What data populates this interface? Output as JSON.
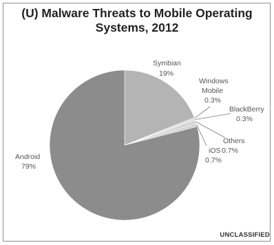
{
  "chart_data": {
    "type": "pie",
    "title_line1": "(U) Malware Threats to Mobile Operating",
    "title_line2": "Systems, 2012",
    "slices": [
      {
        "name": "Android",
        "percent_label": "79%",
        "value": 79.0
      },
      {
        "name": "Symbian",
        "percent_label": "19%",
        "value": 19.0
      },
      {
        "name": "Windows Mobile",
        "name_lines": [
          "Windows",
          "Mobile"
        ],
        "percent_label": "0.3%",
        "value": 0.3
      },
      {
        "name": "BlackBerry",
        "percent_label": "0.3%",
        "value": 0.3
      },
      {
        "name": "Others",
        "percent_label": "0.7%",
        "value": 0.7
      },
      {
        "name": "iOS",
        "percent_label": "0.7%",
        "value": 0.7
      }
    ],
    "colors": {
      "android": "#8c8c8c",
      "symbian": "#b4b4b4",
      "small": "#d2d2d2",
      "edge": "#ffffff"
    }
  },
  "classification_marking": "UNCLASSIFIED"
}
